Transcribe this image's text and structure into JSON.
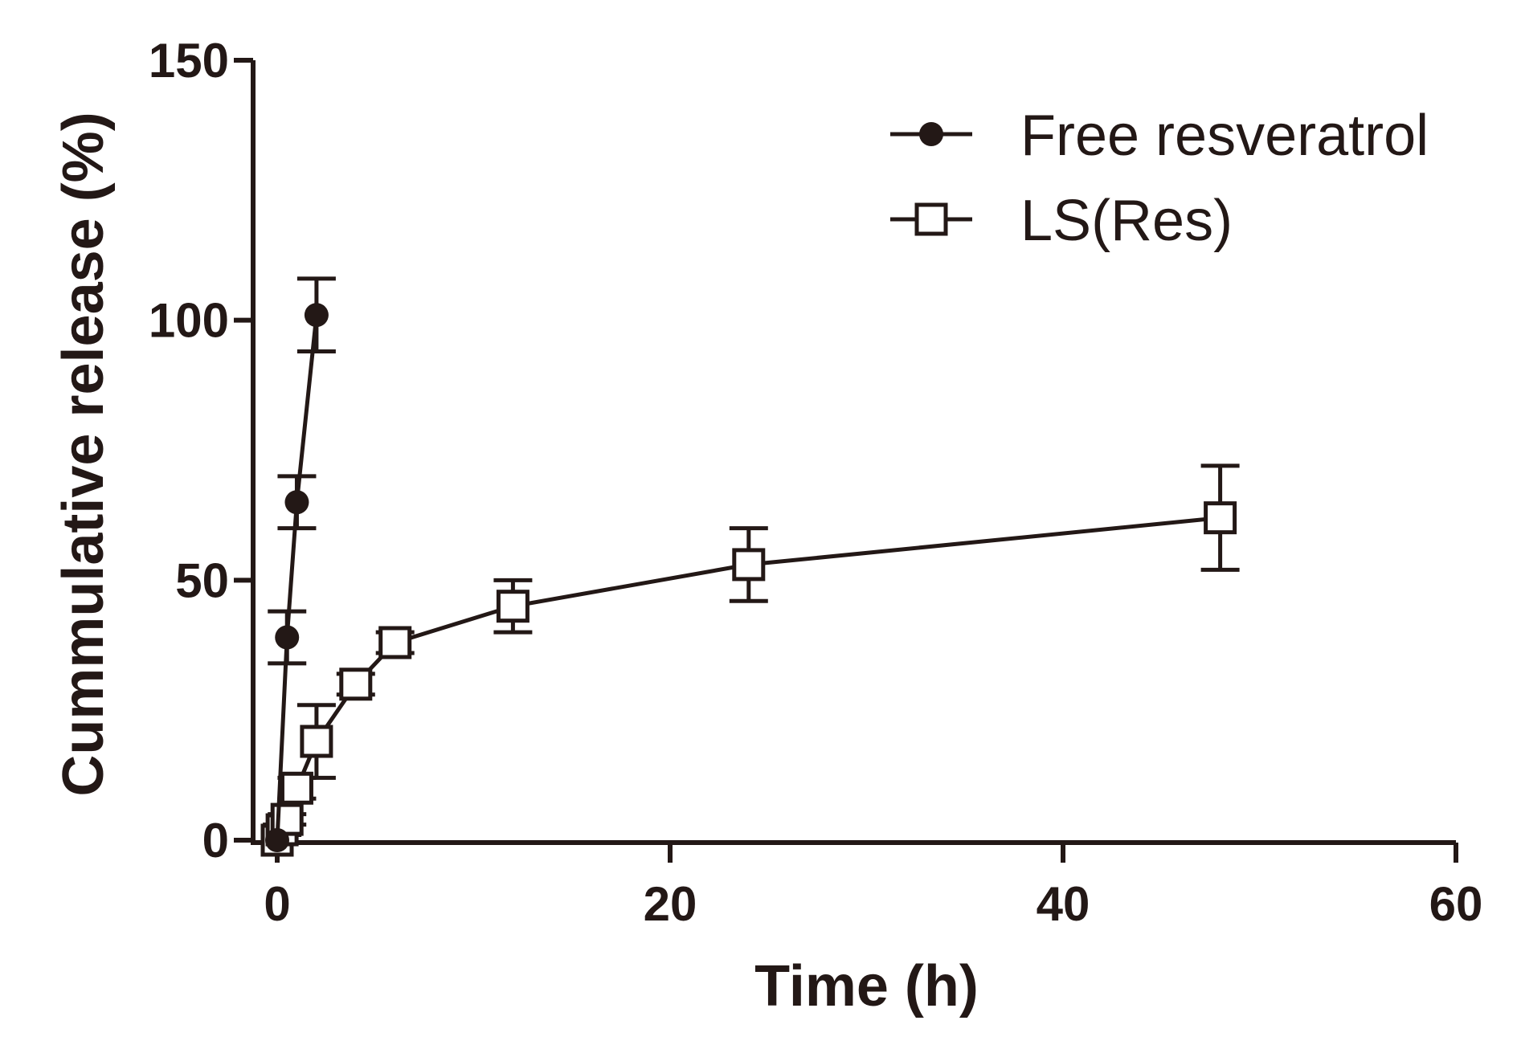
{
  "chart_data": {
    "type": "line",
    "title": "",
    "xlabel": "Time (h)",
    "ylabel": "Cummulative release (%)",
    "xlim": [
      0,
      60
    ],
    "ylim": [
      0,
      150
    ],
    "xticks": [
      0,
      20,
      40,
      60
    ],
    "yticks": [
      0,
      50,
      100,
      150
    ],
    "xtick_labels": [
      "0",
      "20",
      "40",
      "60"
    ],
    "ytick_labels": [
      "0",
      "50",
      "100",
      "150"
    ],
    "grid": false,
    "legend_position": "top-right",
    "color": "#231816",
    "series": [
      {
        "name": "Free resveratrol",
        "marker": "filled-circle",
        "x": [
          0,
          0.5,
          1,
          2
        ],
        "y": [
          0,
          39,
          65,
          101
        ],
        "err": [
          0,
          5,
          5,
          7
        ]
      },
      {
        "name": "LS(Res)",
        "marker": "open-square",
        "x": [
          0,
          0.25,
          0.5,
          1,
          2,
          4,
          6,
          12,
          24,
          48
        ],
        "y": [
          0,
          2,
          4,
          10,
          19,
          30,
          38,
          45,
          53,
          62
        ],
        "err": [
          0,
          1,
          1,
          2,
          7,
          2,
          2,
          5,
          7,
          10
        ]
      }
    ]
  }
}
